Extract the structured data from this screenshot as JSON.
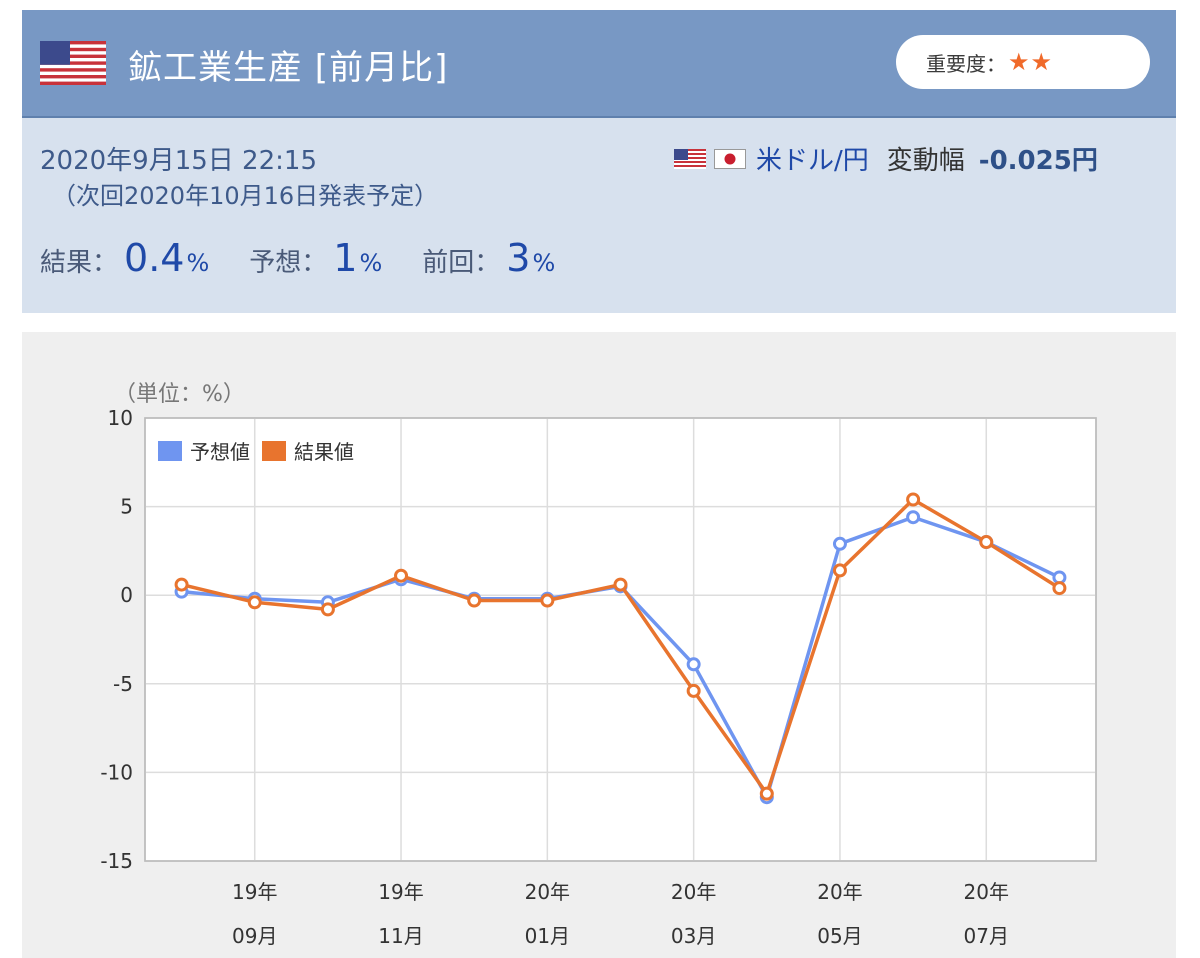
{
  "header": {
    "title": "鉱工業生産 [前月比]",
    "importance_label": "重要度：",
    "importance_stars": "★★"
  },
  "info": {
    "datetime": "2020年9月15日 22:15",
    "next_release": "（次回2020年10月16日発表予定）",
    "pair_label": "米ドル/円",
    "volatility_label": "変動幅",
    "volatility_value": "-0.025円",
    "result_label": "結果：",
    "result_value": "0.4",
    "forecast_label": "予想：",
    "forecast_value": "1",
    "previous_label": "前回：",
    "previous_value": "3",
    "unit_percent": "%"
  },
  "colors": {
    "header_bg": "#7898c4",
    "forecast_line": "#6f95f0",
    "result_line": "#e8742e"
  },
  "chart_data": {
    "type": "line",
    "unit_label": "（単位：%）",
    "ylim": [
      -15,
      10
    ],
    "yticks": [
      10,
      5,
      0,
      -5,
      -10,
      -15
    ],
    "x_count": 13,
    "xtick_positions": [
      1,
      3,
      5,
      7,
      9,
      11
    ],
    "xtick_labels": [
      {
        "year": "19年",
        "month": "09月"
      },
      {
        "year": "19年",
        "month": "11月"
      },
      {
        "year": "20年",
        "month": "01月"
      },
      {
        "year": "20年",
        "month": "03月"
      },
      {
        "year": "20年",
        "month": "05月"
      },
      {
        "year": "20年",
        "month": "07月"
      }
    ],
    "legend_position": "top-left",
    "series": [
      {
        "name": "予想値",
        "color": "#6f95f0",
        "values": [
          0.2,
          -0.2,
          -0.4,
          0.9,
          -0.2,
          -0.2,
          0.5,
          -3.9,
          -11.4,
          2.9,
          4.4,
          3.0,
          1.0
        ]
      },
      {
        "name": "結果値",
        "color": "#e8742e",
        "values": [
          0.6,
          -0.4,
          -0.8,
          1.1,
          -0.3,
          -0.3,
          0.6,
          -5.4,
          -11.2,
          1.4,
          5.4,
          3.0,
          0.4
        ]
      }
    ]
  }
}
